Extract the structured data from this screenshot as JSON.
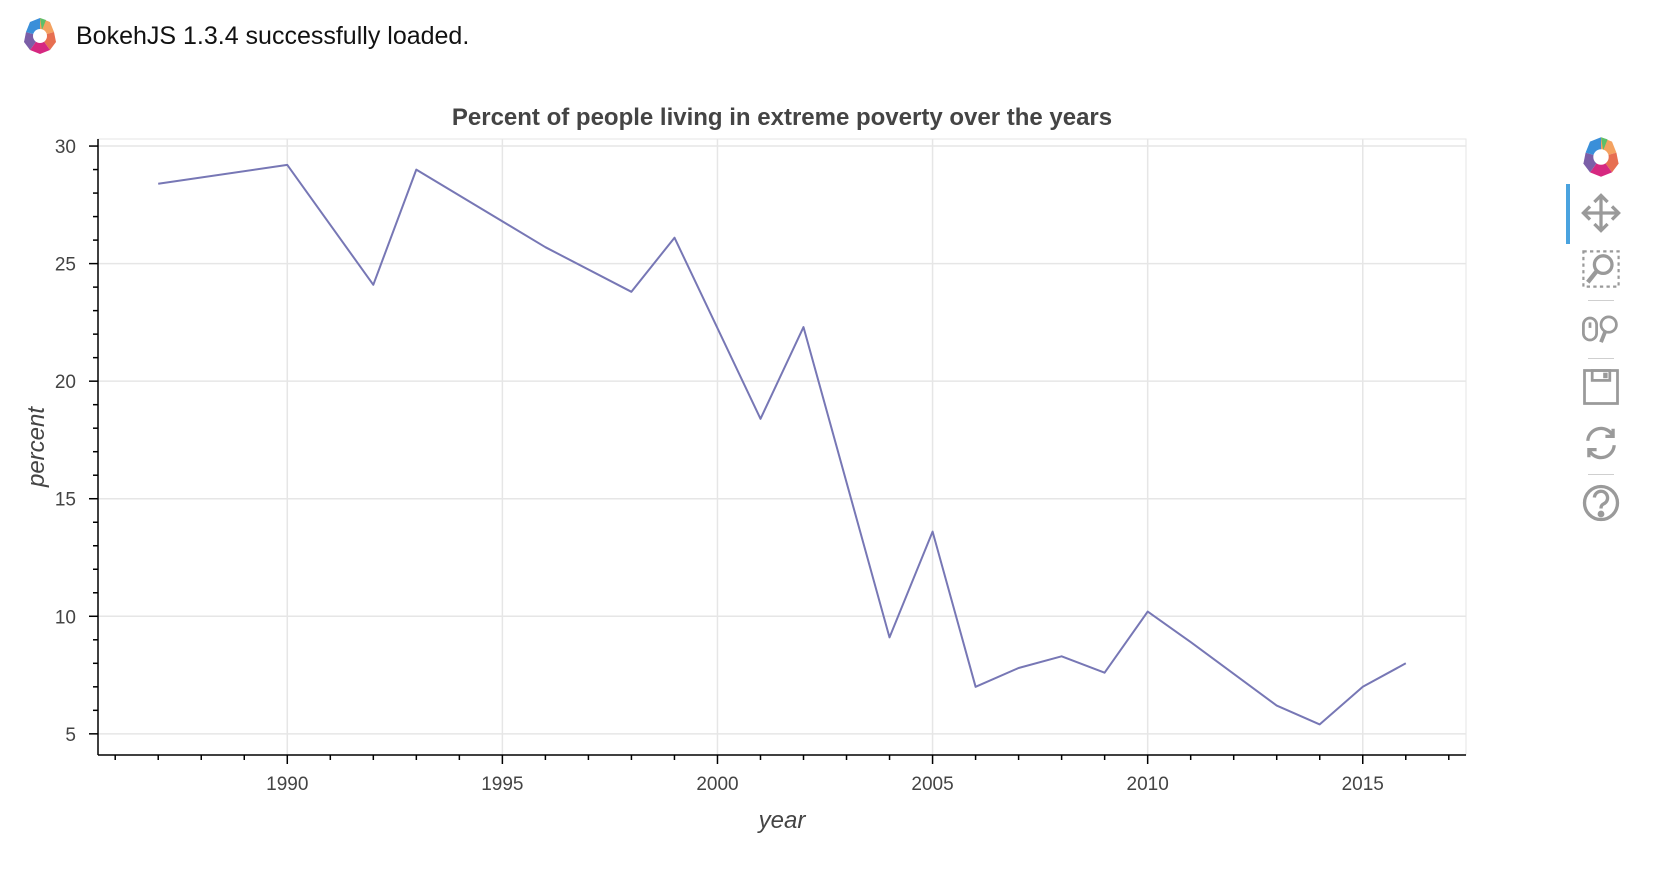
{
  "banner": {
    "message": "BokehJS 1.3.4 successfully loaded.",
    "logo_icon": "bokeh-logo-icon"
  },
  "toolbar": {
    "logo_icon": "bokeh-logo-icon",
    "tools": [
      {
        "name": "pan-tool-button",
        "icon": "move-arrows-icon",
        "active": true
      },
      {
        "name": "box-zoom-tool-button",
        "icon": "box-zoom-icon",
        "active": false
      },
      {
        "name": "wheel-zoom-tool-button",
        "icon": "wheel-zoom-icon",
        "active": false
      },
      {
        "name": "save-tool-button",
        "icon": "save-icon",
        "active": false
      },
      {
        "name": "reset-tool-button",
        "icon": "reset-icon",
        "active": false
      },
      {
        "name": "help-tool-button",
        "icon": "help-icon",
        "active": false
      }
    ]
  },
  "chart_data": {
    "type": "line",
    "title": "Percent of people living in extreme poverty over the years",
    "xlabel": "year",
    "ylabel": "percent",
    "xlim": [
      1985.6,
      2017.4
    ],
    "ylim": [
      4.1,
      30.3
    ],
    "xticks": [
      1990,
      1995,
      2000,
      2005,
      2010,
      2015
    ],
    "yticks": [
      5,
      10,
      15,
      20,
      25,
      30
    ],
    "grid": true,
    "line_color": "#7777b5",
    "x": [
      1987,
      1990,
      1992,
      1993,
      1996,
      1998,
      1999,
      2001,
      2002,
      2004,
      2005,
      2006,
      2007,
      2008,
      2009,
      2010,
      2011,
      2013,
      2014,
      2015,
      2016
    ],
    "y": [
      28.4,
      29.2,
      24.1,
      29.0,
      25.7,
      23.8,
      26.1,
      18.4,
      22.3,
      9.1,
      13.6,
      7.0,
      7.8,
      8.3,
      7.6,
      10.2,
      8.9,
      6.2,
      5.4,
      7.0,
      8.0
    ]
  }
}
